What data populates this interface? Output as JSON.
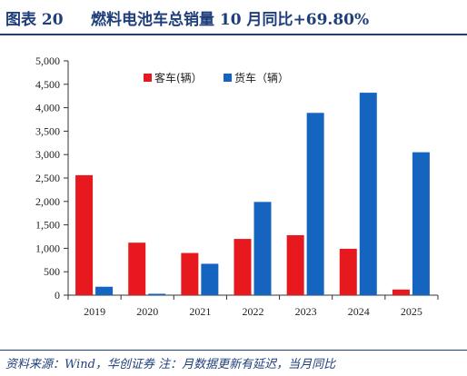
{
  "header": {
    "figure_no": "图表 20",
    "title": "燃料电池车总销量 10 月同比+69.80%"
  },
  "footer": {
    "source": "资料来源：Wind，华创证券 注：月数据更新有延迟，当月同比"
  },
  "colors": {
    "series1": "#e8191e",
    "series2": "#1565c0",
    "title": "#1f3f7a"
  },
  "chart_data": {
    "type": "bar",
    "categories": [
      "2019",
      "2020",
      "2021",
      "2022",
      "2023",
      "2024",
      "2025"
    ],
    "series": [
      {
        "name": "客车(辆）",
        "values": [
          2560,
          1120,
          900,
          1200,
          1280,
          990,
          120
        ]
      },
      {
        "name": "货车（辆）",
        "values": [
          180,
          30,
          670,
          1990,
          3890,
          4320,
          3050
        ]
      }
    ],
    "yticks": [
      "0",
      "500",
      "1,000",
      "1,500",
      "2,000",
      "2,500",
      "3,000",
      "3,500",
      "4,000",
      "4,500",
      "5,000"
    ],
    "ylim": [
      0,
      5000
    ],
    "grid": false,
    "legend": "top"
  }
}
